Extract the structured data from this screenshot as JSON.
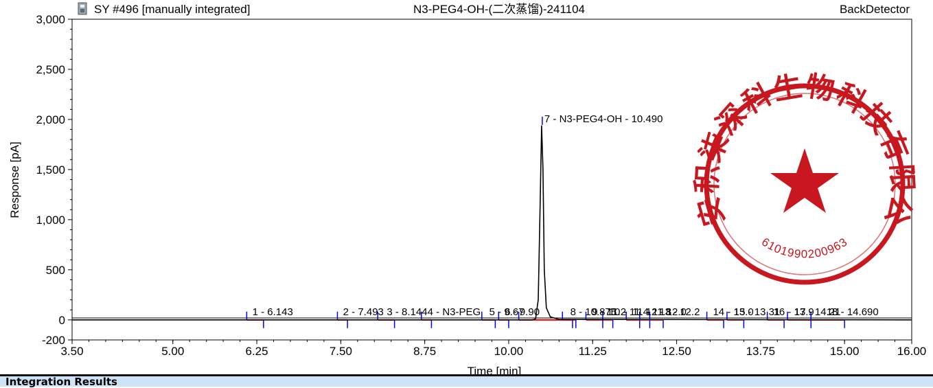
{
  "sample_label": "SY #496 [manually integrated]",
  "center_title": "N3-PEG4-OH-(二次蒸馏)-241104",
  "detector": "BackDetector",
  "section_title": "Integration Results",
  "stamp": {
    "company": "西安积柒深科生物科技有限公司",
    "number": "6101990200963",
    "color": "#c8171e"
  },
  "colors": {
    "trace": "#000000",
    "baseline": "#ff0000",
    "marker": "#0000ff"
  },
  "chart_data": {
    "type": "line",
    "xlabel": "Time [min]",
    "ylabel": "Response [pA]",
    "xlim": [
      3.5,
      16.0
    ],
    "ylim": [
      -200,
      3000
    ],
    "xticks": [
      "3.50",
      "5.00",
      "6.25",
      "7.50",
      "8.75",
      "10.00",
      "11.25",
      "12.50",
      "13.75",
      "15.00",
      "16.00"
    ],
    "xtick_values": [
      3.5,
      5.0,
      6.25,
      7.5,
      8.75,
      10.0,
      11.25,
      12.5,
      13.75,
      15.0,
      16.0
    ],
    "yticks": [
      "3,000",
      "2,500",
      "2,000",
      "1,500",
      "1,000",
      "500",
      "0",
      "-200"
    ],
    "ytick_values": [
      3000,
      2500,
      2000,
      1500,
      1000,
      500,
      0,
      -200
    ],
    "series": [
      {
        "values_x": [
          3.5,
          10.35,
          10.4,
          10.44,
          10.47,
          10.49,
          10.51,
          10.53,
          10.56,
          10.62,
          10.75,
          16.0
        ],
        "values_y": [
          0,
          0,
          10,
          200,
          1200,
          1940,
          1500,
          500,
          120,
          30,
          5,
          0
        ]
      }
    ],
    "peaks": [
      {
        "label": "1 - 6.143",
        "rt": 6.143,
        "start": 6.1,
        "end": 6.35
      },
      {
        "label": "2 - 7.493",
        "rt": 7.493,
        "start": 7.45,
        "end": 7.6
      },
      {
        "label": "3 - 8.144",
        "rt": 8.144,
        "start": 8.05,
        "end": 8.3
      },
      {
        "label": "4 - N3-PEG",
        "rt": 8.75,
        "start": 8.7,
        "end": 8.85
      },
      {
        "label": "5 - 9.67",
        "rt": 9.67,
        "start": 9.6,
        "end": 9.8
      },
      {
        "label": "6 - 9.90",
        "rt": 9.9,
        "start": 9.85,
        "end": 10.0
      },
      {
        "label": "7 - N3-PEG4-OH - 10.490",
        "rt": 10.49,
        "start": 10.15,
        "end": 10.95
      },
      {
        "label": "8 - 10.875",
        "rt": 10.875,
        "start": 10.8,
        "end": 11.0
      },
      {
        "label": "9 - 11.2",
        "rt": 11.2,
        "start": 11.15,
        "end": 11.4
      },
      {
        "label": "10 - 11.4",
        "rt": 11.45,
        "start": 11.4,
        "end": 11.55
      },
      {
        "label": "11 - 11.8",
        "rt": 11.8,
        "start": 11.75,
        "end": 11.95
      },
      {
        "label": "12 - 12.0",
        "rt": 12.0,
        "start": 11.95,
        "end": 12.1
      },
      {
        "label": "13 - 12.2",
        "rt": 12.2,
        "start": 12.1,
        "end": 12.3
      },
      {
        "label": "14 - 13.0",
        "rt": 13.0,
        "start": 12.95,
        "end": 13.2
      },
      {
        "label": "15 - 13.31",
        "rt": 13.31,
        "start": 13.25,
        "end": 13.5
      },
      {
        "label": "16 - 13.9",
        "rt": 13.9,
        "start": 13.85,
        "end": 14.1
      },
      {
        "label": "17 - 14.21",
        "rt": 14.21,
        "start": 14.15,
        "end": 14.5
      },
      {
        "label": "18 - 14.690",
        "rt": 14.69,
        "start": 14.5,
        "end": 15.0
      }
    ]
  }
}
